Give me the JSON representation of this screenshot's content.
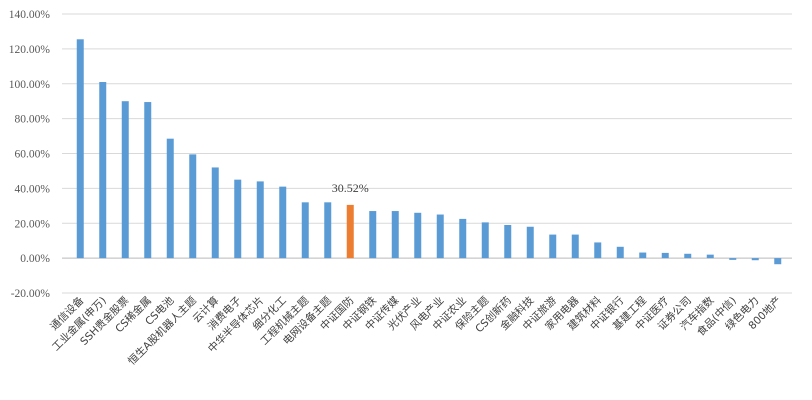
{
  "chart_data": {
    "type": "bar",
    "title": "",
    "xlabel": "",
    "ylabel": "",
    "ylim": [
      -20,
      140
    ],
    "yticks": [
      -20,
      0,
      20,
      40,
      60,
      80,
      100,
      120,
      140
    ],
    "ytick_labels": [
      "-20.00%",
      "0.00%",
      "20.00%",
      "40.00%",
      "60.00%",
      "80.00%",
      "100.00%",
      "120.00%",
      "140.00%"
    ],
    "grid": true,
    "legend": "none",
    "colors": {
      "default": "#5b9bd5",
      "highlight": "#ed7d31",
      "grid": "#d9d9d9",
      "axis": "#bfbfbf"
    },
    "highlight_index": 12,
    "data_labels": [
      {
        "index": 12,
        "text": "30.52%"
      }
    ],
    "categories": [
      "通信设备",
      "工业金属(申万)",
      "SSH贵金股票",
      "CS稀金属",
      "CS电池",
      "恒生A股机器人主题",
      "云计算",
      "消费电子",
      "中华半导体芯片",
      "细分化工",
      "工程机械主题",
      "电网设备主题",
      "中证国防",
      "中证钢铁",
      "中证传媒",
      "光伏产业",
      "风电产业",
      "中证农业",
      "保险主题",
      "CS创新药",
      "金融科技",
      "中证旅游",
      "家用电器",
      "建筑材料",
      "中证银行",
      "基建工程",
      "中证医疗",
      "证券公司",
      "汽车指数",
      "食品(中信)",
      "绿色电力",
      "800地产"
    ],
    "values": [
      125.5,
      101.0,
      90.0,
      89.5,
      68.5,
      59.5,
      52.0,
      45.0,
      44.0,
      41.0,
      32.0,
      32.0,
      30.52,
      27.0,
      27.0,
      26.0,
      25.0,
      22.5,
      20.5,
      19.0,
      18.0,
      13.5,
      13.5,
      9.0,
      6.5,
      3.2,
      3.0,
      2.5,
      2.0,
      -1.0,
      -1.2,
      -3.5
    ]
  }
}
